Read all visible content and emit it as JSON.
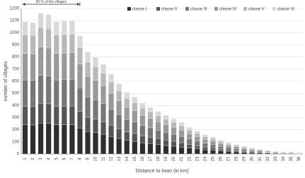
{
  "chart_data": {
    "type": "stacked-bar",
    "y_label": "number of villages",
    "x_label": "Distance to town (in km)",
    "annotation": "50 % of the villages",
    "categories": [
      "1",
      "2",
      "3",
      "4",
      "5",
      "6",
      "7",
      "8",
      "9",
      "10",
      "11",
      "12",
      "13",
      "14",
      "15",
      "16",
      "17",
      "18",
      "19",
      "20",
      "21",
      "22",
      "23",
      "24",
      "25",
      "26",
      "27",
      "28",
      "29",
      "30",
      "31",
      "32",
      "33",
      "34",
      "35",
      "36"
    ],
    "series": [
      {
        "name": "classe I",
        "color": "#2e2e2e",
        "values": [
          240,
          239,
          255,
          253,
          240,
          241,
          242,
          215,
          185,
          176,
          163,
          145,
          128,
          112,
          103,
          92,
          85,
          77,
          70,
          64,
          57,
          48,
          42,
          35,
          31,
          25,
          21,
          18,
          14,
          11,
          9,
          7,
          6,
          4,
          4,
          3
        ]
      },
      {
        "name": "classe II",
        "color": "#555555",
        "values": [
          153,
          152,
          162,
          161,
          153,
          153,
          154,
          136,
          118,
          112,
          104,
          92,
          81,
          71,
          66,
          59,
          54,
          49,
          45,
          41,
          36,
          31,
          27,
          22,
          20,
          16,
          13,
          11,
          9,
          7,
          6,
          4,
          3,
          3,
          3,
          2
        ]
      },
      {
        "name": "classe III",
        "color": "#777777",
        "values": [
          218,
          217,
          232,
          230,
          218,
          219,
          220,
          195,
          168,
          160,
          148,
          132,
          116,
          102,
          94,
          84,
          77,
          70,
          64,
          58,
          52,
          44,
          38,
          32,
          28,
          23,
          19,
          16,
          13,
          10,
          8,
          6,
          5,
          4,
          4,
          3
        ]
      },
      {
        "name": "classe IV",
        "color": "#999999",
        "values": [
          218,
          217,
          232,
          230,
          218,
          219,
          220,
          195,
          168,
          160,
          148,
          132,
          116,
          102,
          94,
          84,
          77,
          70,
          64,
          58,
          52,
          44,
          38,
          32,
          28,
          23,
          19,
          16,
          13,
          10,
          8,
          6,
          5,
          4,
          4,
          3
        ]
      },
      {
        "name": "classe V",
        "color": "#b8b8b8",
        "values": [
          153,
          152,
          162,
          161,
          153,
          153,
          154,
          136,
          118,
          112,
          104,
          92,
          81,
          71,
          66,
          59,
          54,
          49,
          45,
          41,
          36,
          31,
          27,
          22,
          20,
          16,
          13,
          11,
          9,
          7,
          6,
          4,
          3,
          3,
          3,
          2
        ]
      },
      {
        "name": "classe VI",
        "color": "#d8d8d8",
        "values": [
          108,
          108,
          117,
          115,
          108,
          110,
          110,
          98,
          83,
          80,
          73,
          67,
          58,
          52,
          47,
          42,
          38,
          35,
          32,
          28,
          27,
          22,
          18,
          17,
          13,
          12,
          10,
          8,
          7,
          5,
          3,
          3,
          3,
          2,
          2,
          2
        ]
      }
    ],
    "ylim": [
      0,
      1200
    ],
    "yticks": [
      0,
      100,
      200,
      300,
      400,
      500,
      600,
      700,
      800,
      900,
      1000,
      1100,
      1200
    ],
    "grid": true
  }
}
